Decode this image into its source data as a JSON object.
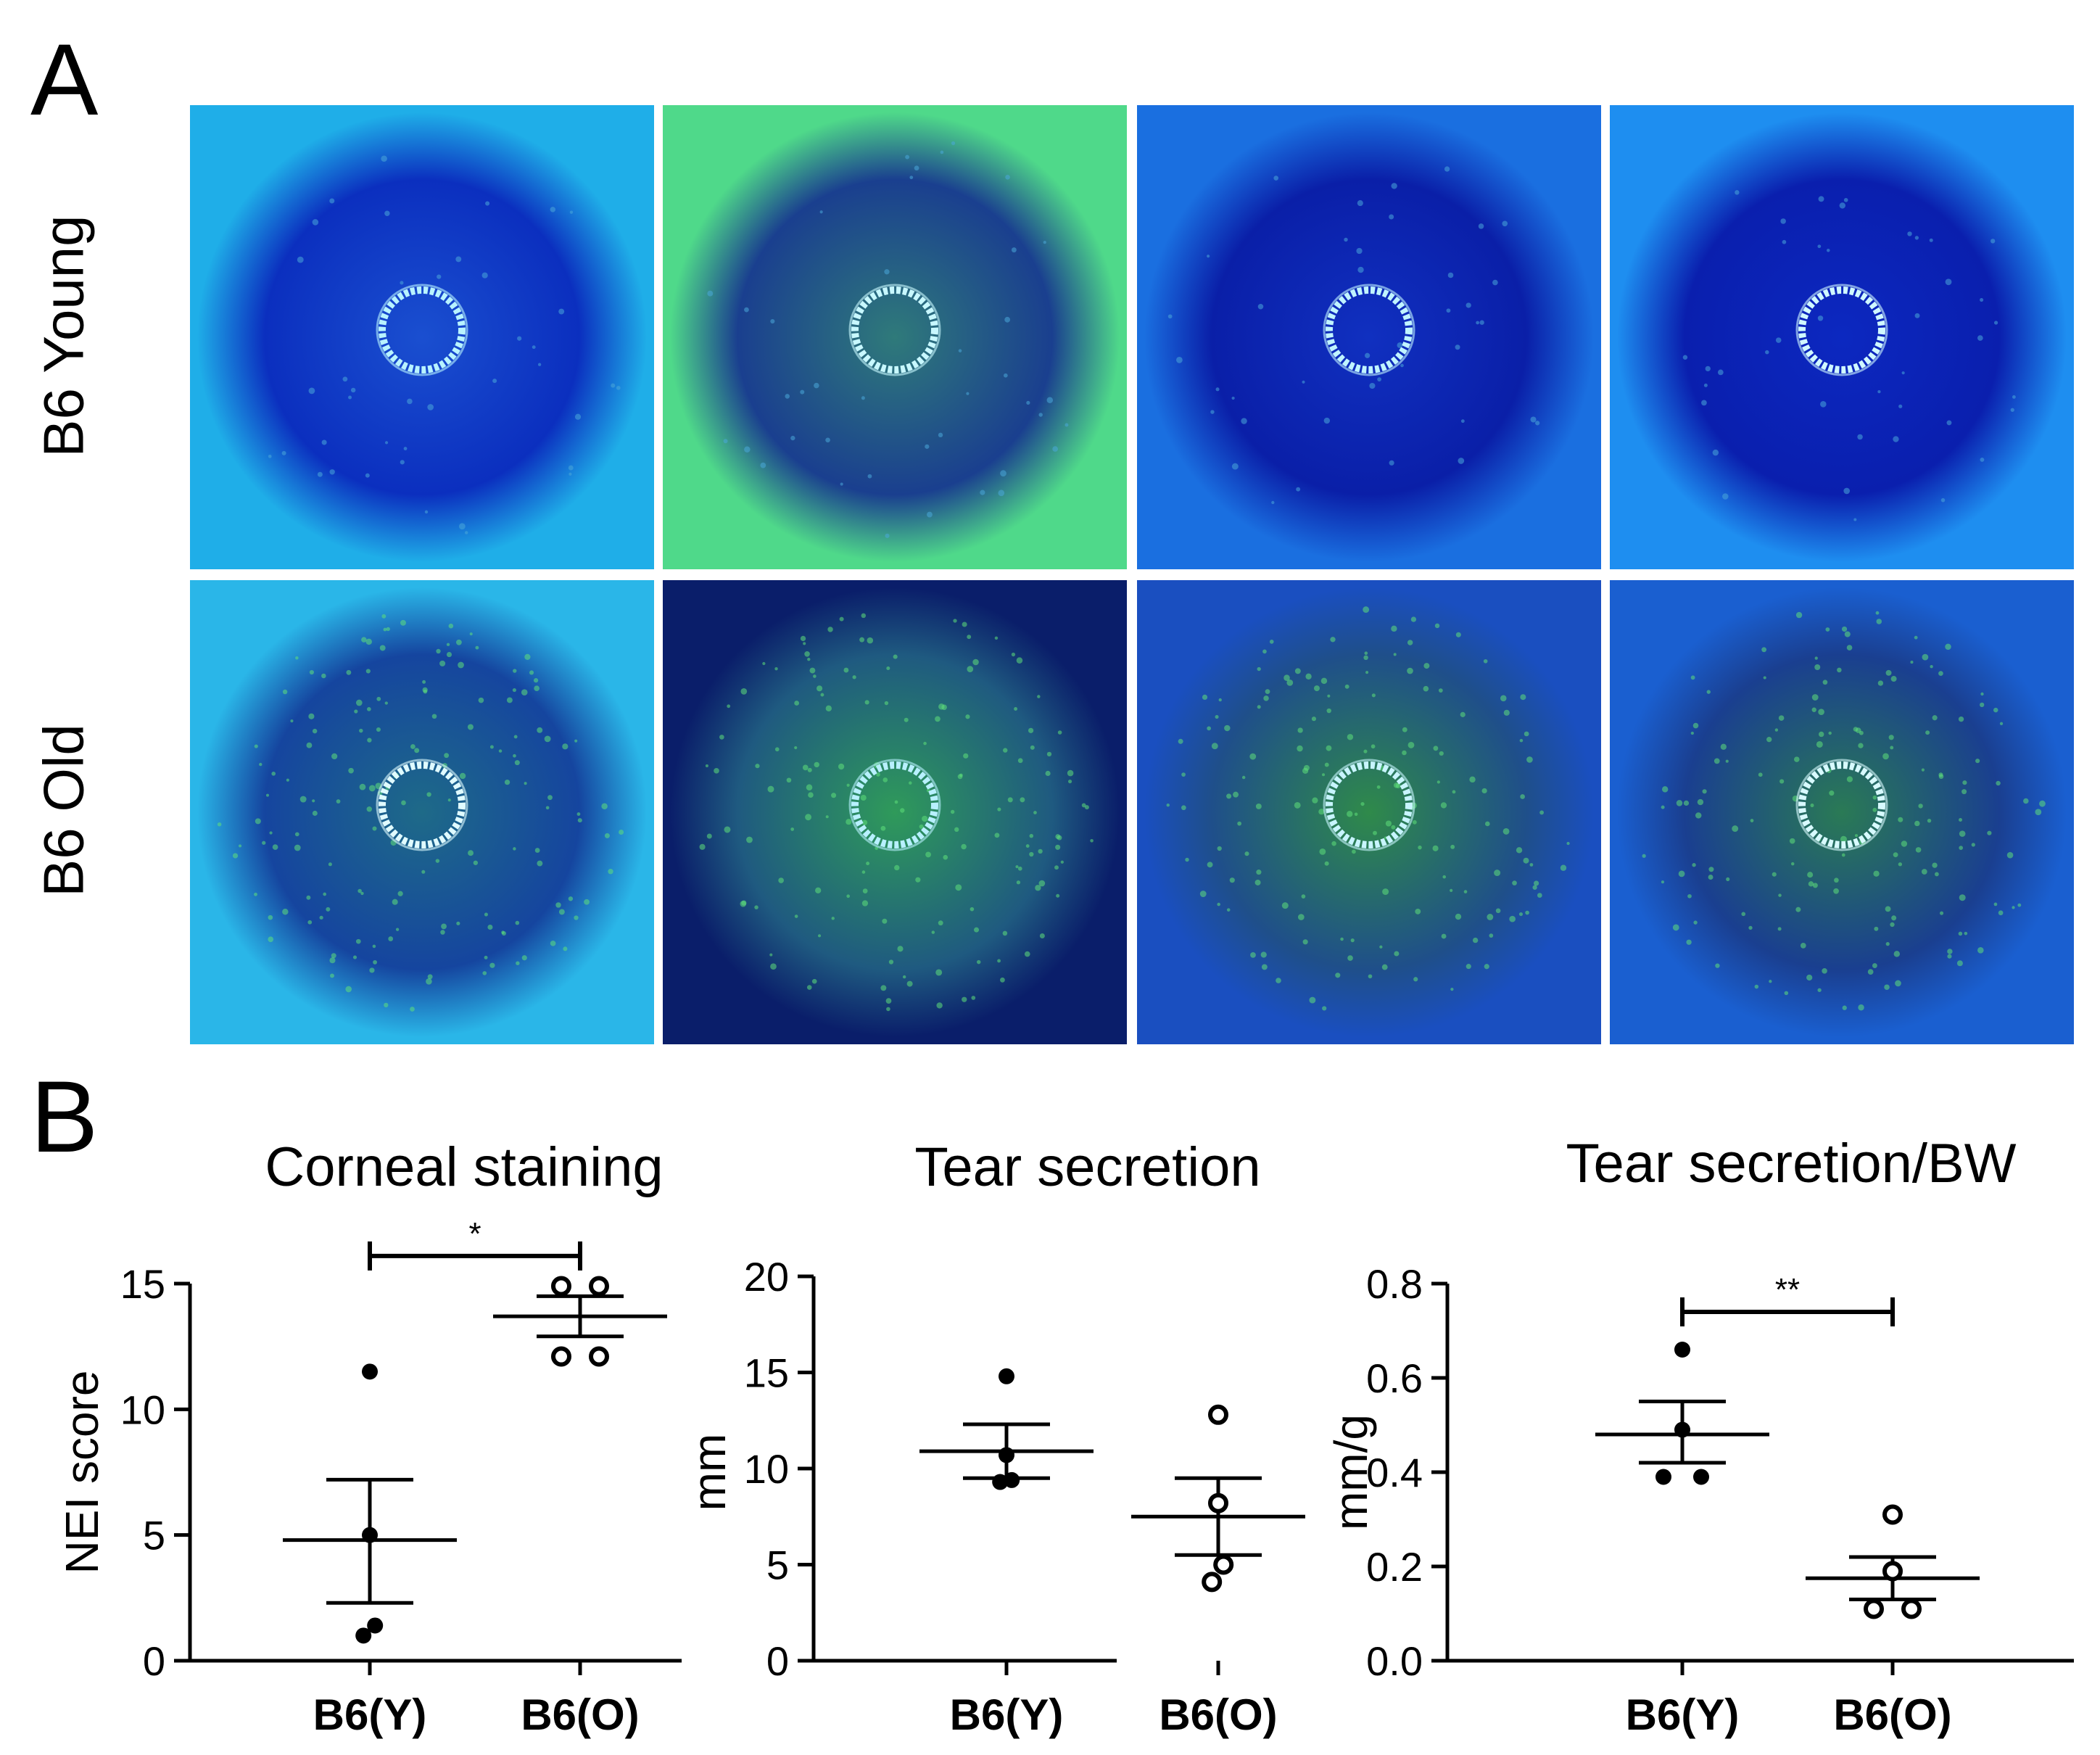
{
  "panel_a": {
    "letter": "A",
    "rows": [
      {
        "label": "B6 Young",
        "photos": [
          {
            "bg": "#1faee8",
            "iris": "#0b2fbf",
            "stain": "#1a4fd0",
            "ring": "#b8f3ff"
          },
          {
            "bg": "#4fd98a",
            "iris": "#1a3f8f",
            "stain": "#2f7a7a",
            "ring": "#c8f8ff"
          },
          {
            "bg": "#1a6fe0",
            "iris": "#0a1fa8",
            "stain": "#1030c0",
            "ring": "#c0f4ff"
          },
          {
            "bg": "#1e8ef0",
            "iris": "#0a1fae",
            "stain": "#0c28c0",
            "ring": "#d0f8ff"
          }
        ]
      },
      {
        "label": "B6 Old",
        "photos": [
          {
            "bg": "#2ab6e8",
            "iris": "#15459f",
            "stain": "#1e6a88",
            "ring": "#e0fbff"
          },
          {
            "bg": "#0a1e6a",
            "iris": "#1f5a80",
            "stain": "#2f9a5a",
            "ring": "#b8f0ff"
          },
          {
            "bg": "#1a4fc0",
            "iris": "#1f4f8a",
            "stain": "#2f8a4a",
            "ring": "#c8f5ff"
          },
          {
            "bg": "#1a5fd0",
            "iris": "#1a3f90",
            "stain": "#2a7a55",
            "ring": "#d8faff"
          }
        ]
      }
    ]
  },
  "panel_b": {
    "letter": "B"
  },
  "chart_data": [
    {
      "type": "scatter",
      "title": "Corneal staining",
      "ylabel": "NEI score",
      "categories": [
        "B6(Y)",
        "B6(O)"
      ],
      "ylim": [
        0,
        15
      ],
      "yticks": [
        0,
        5,
        10,
        15
      ],
      "series": [
        {
          "name": "B6(Y)",
          "filled": true,
          "values": [
            11.5,
            5.0,
            1.4,
            1.0
          ],
          "mean": 4.8,
          "sem_upper": 7.2,
          "sem_lower": 2.3
        },
        {
          "name": "B6(O)",
          "filled": false,
          "values": [
            14.9,
            14.9,
            12.1,
            12.1
          ],
          "mean": 13.7,
          "sem_upper": 14.5,
          "sem_lower": 12.9
        }
      ],
      "significance": {
        "label": "*",
        "from": 0,
        "to": 1,
        "y": 16.1
      }
    },
    {
      "type": "scatter",
      "title": "Tear secretion",
      "ylabel": "mm",
      "categories": [
        "B6(Y)",
        "B6(O)"
      ],
      "ylim": [
        0,
        20
      ],
      "yticks": [
        0,
        5,
        10,
        15,
        20
      ],
      "series": [
        {
          "name": "B6(Y)",
          "filled": true,
          "values": [
            14.8,
            10.7,
            9.4,
            9.3
          ],
          "mean": 10.9,
          "sem_upper": 12.3,
          "sem_lower": 9.5
        },
        {
          "name": "B6(O)",
          "filled": false,
          "values": [
            12.8,
            8.2,
            5.0,
            4.1
          ],
          "mean": 7.5,
          "sem_upper": 9.5,
          "sem_lower": 5.5
        }
      ]
    },
    {
      "type": "scatter",
      "title": "Tear secretion/BW",
      "ylabel": "mm/g",
      "categories": [
        "B6(Y)",
        "B6(O)"
      ],
      "ylim": [
        0,
        0.8
      ],
      "yticks": [
        "0.0",
        "0.2",
        "0.4",
        "0.6",
        "0.8"
      ],
      "series": [
        {
          "name": "B6(Y)",
          "filled": true,
          "values": [
            0.66,
            0.49,
            0.39,
            0.39
          ],
          "mean": 0.48,
          "sem_upper": 0.55,
          "sem_lower": 0.42
        },
        {
          "name": "B6(O)",
          "filled": false,
          "values": [
            0.31,
            0.19,
            0.11,
            0.11
          ],
          "mean": 0.175,
          "sem_upper": 0.22,
          "sem_lower": 0.13
        }
      ],
      "significance": {
        "label": "**",
        "from": 0,
        "to": 1,
        "y": 0.74
      }
    }
  ]
}
